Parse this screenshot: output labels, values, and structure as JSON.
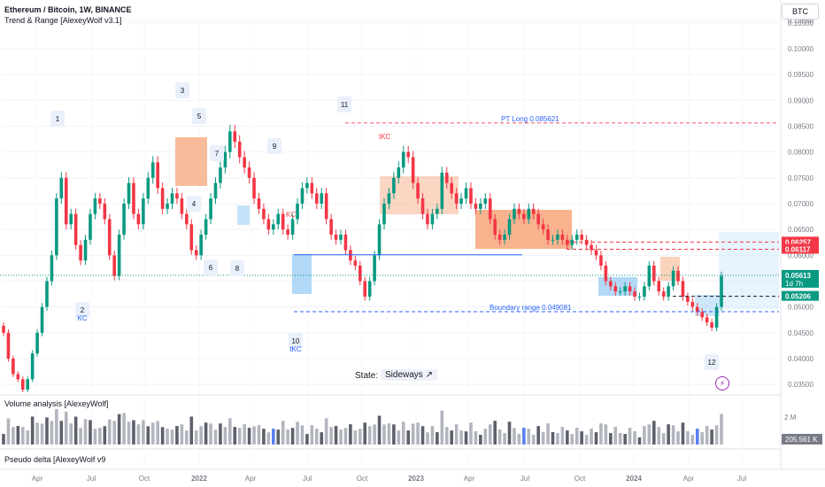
{
  "header": {
    "title": "Ethereum / Bitcoin, 1W, BINANCE",
    "indicator": "Trend & Range [AlexeyWolf v3.1]"
  },
  "symbol_box": "BTC",
  "state": {
    "label": "State:",
    "value": "Sideways ↗"
  },
  "volume_pane": {
    "title": "Volume analysis [AlexeyWolf]",
    "scale_label": "2 M",
    "last_value": "205.561 K"
  },
  "delta_pane": {
    "title": "Pseudo delta [AlexeyWolf v9"
  },
  "colors": {
    "up": "#089981",
    "down": "#f23645",
    "blue": "#2962ff",
    "orange": "#f7a57a",
    "lightblue": "#9fd0f5"
  },
  "price_labels": [
    {
      "text": "0.06257",
      "color": "#f23645"
    },
    {
      "text": "0.06117",
      "color": "#f23645"
    },
    {
      "text": "0.05613",
      "sub": "1d 7h",
      "color": "#089981"
    },
    {
      "text": "0.05206",
      "color": "#089981"
    }
  ],
  "annotations": {
    "pt_long": "PT Long 0.085621",
    "boundary": "Boundary range 0.049081",
    "kc": "KC",
    "tkc_top": "tKC",
    "kc2": "KC",
    "tkc10": "tKC"
  },
  "markers": [
    {
      "n": "1"
    },
    {
      "n": "2"
    },
    {
      "n": "3"
    },
    {
      "n": "4"
    },
    {
      "n": "5"
    },
    {
      "n": "6"
    },
    {
      "n": "7"
    },
    {
      "n": "8"
    },
    {
      "n": "9"
    },
    {
      "n": "10"
    },
    {
      "n": "11"
    },
    {
      "n": "12"
    }
  ],
  "chart_data": {
    "type": "candlestick",
    "title": "Ethereum / Bitcoin, 1W, BINANCE",
    "y_ticks": [
      "0.10550",
      "0.10500",
      "0.10000",
      "0.09500",
      "0.09000",
      "0.08500",
      "0.08000",
      "0.07500",
      "0.07000",
      "0.06500",
      "0.06000",
      "0.05500",
      "0.05000",
      "0.04500",
      "0.04000",
      "0.03500"
    ],
    "ylim": [
      0.034,
      0.106
    ],
    "x_ticks": [
      "Apr",
      "Jul",
      "Oct",
      "2022",
      "Apr",
      "Jul",
      "Oct",
      "2023",
      "Apr",
      "Jul",
      "Oct",
      "2024",
      "Apr",
      "Jul"
    ],
    "closes": [
      0.045,
      0.04,
      0.037,
      0.036,
      0.034,
      0.036,
      0.041,
      0.045,
      0.05,
      0.055,
      0.06,
      0.071,
      0.075,
      0.066,
      0.068,
      0.062,
      0.059,
      0.063,
      0.068,
      0.071,
      0.07,
      0.067,
      0.06,
      0.056,
      0.064,
      0.07,
      0.074,
      0.068,
      0.066,
      0.071,
      0.075,
      0.078,
      0.073,
      0.069,
      0.07,
      0.072,
      0.071,
      0.068,
      0.066,
      0.061,
      0.06,
      0.064,
      0.067,
      0.071,
      0.074,
      0.077,
      0.08,
      0.084,
      0.082,
      0.079,
      0.077,
      0.075,
      0.071,
      0.069,
      0.067,
      0.065,
      0.066,
      0.068,
      0.065,
      0.064,
      0.067,
      0.07,
      0.073,
      0.074,
      0.072,
      0.07,
      0.072,
      0.067,
      0.064,
      0.063,
      0.064,
      0.061,
      0.059,
      0.058,
      0.055,
      0.052,
      0.055,
      0.06,
      0.066,
      0.07,
      0.072,
      0.075,
      0.077,
      0.08,
      0.079,
      0.074,
      0.071,
      0.068,
      0.066,
      0.068,
      0.069,
      0.076,
      0.074,
      0.072,
      0.07,
      0.071,
      0.073,
      0.07,
      0.069,
      0.07,
      0.071,
      0.067,
      0.064,
      0.063,
      0.064,
      0.067,
      0.069,
      0.068,
      0.067,
      0.069,
      0.068,
      0.066,
      0.065,
      0.063,
      0.063,
      0.064,
      0.063,
      0.062,
      0.063,
      0.064,
      0.063,
      0.062,
      0.061,
      0.06,
      0.058,
      0.055,
      0.054,
      0.053,
      0.053,
      0.054,
      0.053,
      0.052,
      0.052,
      0.054,
      0.058,
      0.055,
      0.053,
      0.052,
      0.054,
      0.057,
      0.055,
      0.052,
      0.051,
      0.05,
      0.049,
      0.048,
      0.047,
      0.046,
      0.05,
      0.056
    ]
  }
}
